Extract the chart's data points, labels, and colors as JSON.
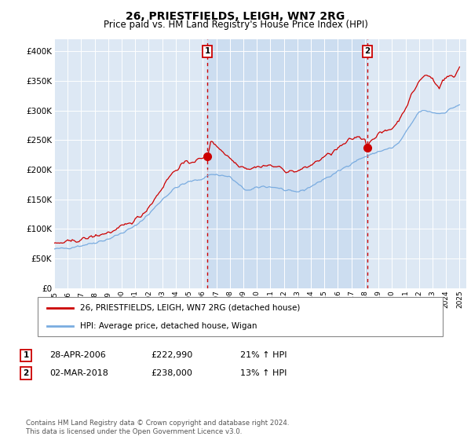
{
  "title": "26, PRIESTFIELDS, LEIGH, WN7 2RG",
  "subtitle": "Price paid vs. HM Land Registry's House Price Index (HPI)",
  "ylabel_ticks": [
    "£0",
    "£50K",
    "£100K",
    "£150K",
    "£200K",
    "£250K",
    "£300K",
    "£350K",
    "£400K"
  ],
  "ytick_values": [
    0,
    50000,
    100000,
    150000,
    200000,
    250000,
    300000,
    350000,
    400000
  ],
  "ylim": [
    0,
    420000
  ],
  "xlim_start": 1995.0,
  "xlim_end": 2025.5,
  "bg_color": "#dde8f4",
  "shade_color": "#ccddf0",
  "line_color_red": "#cc0000",
  "line_color_blue": "#7aace0",
  "legend_label_red": "26, PRIESTFIELDS, LEIGH, WN7 2RG (detached house)",
  "legend_label_blue": "HPI: Average price, detached house, Wigan",
  "sale1_x": 2006.33,
  "sale1_y": 222990,
  "sale1_label": "1",
  "sale1_date": "28-APR-2006",
  "sale1_price": "£222,990",
  "sale1_hpi": "21% ↑ HPI",
  "sale2_x": 2018.17,
  "sale2_y": 238000,
  "sale2_label": "2",
  "sale2_date": "02-MAR-2018",
  "sale2_price": "£238,000",
  "sale2_hpi": "13% ↑ HPI",
  "footer": "Contains HM Land Registry data © Crown copyright and database right 2024.\nThis data is licensed under the Open Government Licence v3.0."
}
